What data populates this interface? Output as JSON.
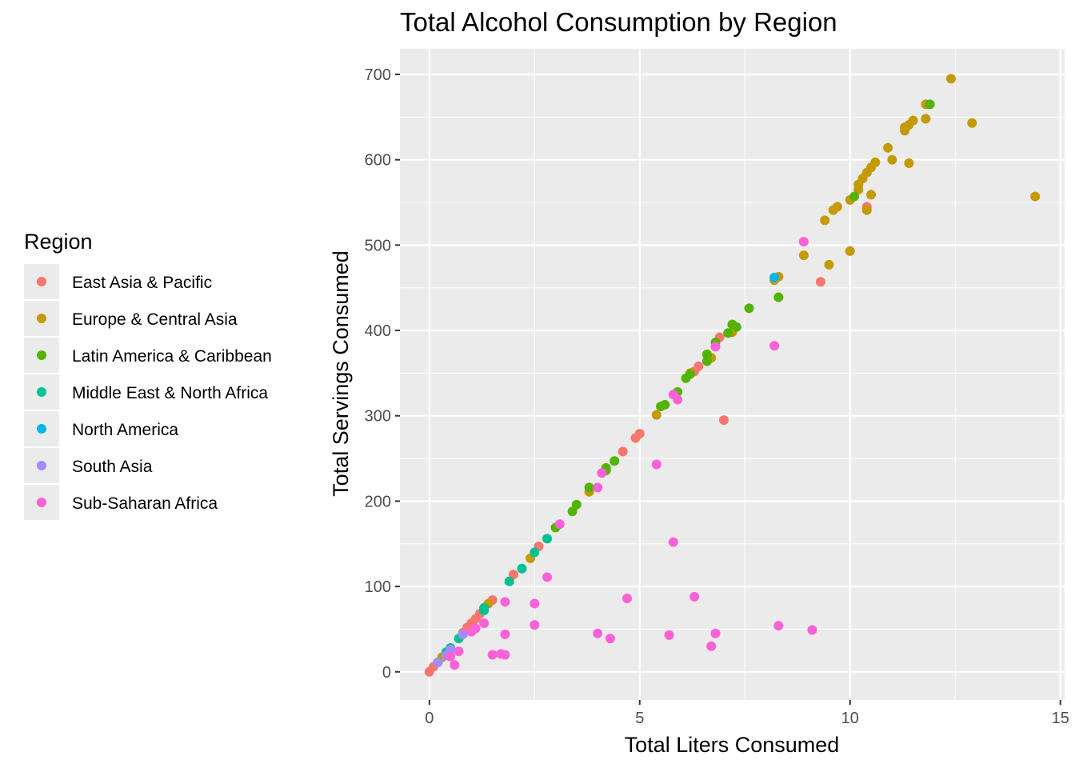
{
  "chart_data": {
    "type": "scatter",
    "title": "Total Alcohol Consumption by Region",
    "xlabel": "Total Liters Consumed",
    "ylabel": "Total Servings Consumed",
    "xlim": [
      -0.7,
      15.1
    ],
    "ylim": [
      -33,
      730
    ],
    "x_ticks": [
      0,
      5,
      10,
      15
    ],
    "y_ticks": [
      0,
      100,
      200,
      300,
      400,
      500,
      600,
      700
    ],
    "grid": true,
    "legend": {
      "title": "Region",
      "position": "left"
    },
    "series": [
      {
        "name": "East Asia & Pacific",
        "color": "#F8766D",
        "points": [
          [
            0.0,
            0
          ],
          [
            0.1,
            6
          ],
          [
            0.8,
            46
          ],
          [
            0.9,
            52
          ],
          [
            1.0,
            57
          ],
          [
            1.1,
            62
          ],
          [
            1.2,
            68
          ],
          [
            1.5,
            84
          ],
          [
            2.0,
            114
          ],
          [
            2.6,
            147
          ],
          [
            4.6,
            258
          ],
          [
            4.9,
            274
          ],
          [
            5.0,
            279
          ],
          [
            6.3,
            352
          ],
          [
            6.4,
            358
          ],
          [
            6.9,
            392
          ],
          [
            7.0,
            295
          ],
          [
            9.3,
            457
          ],
          [
            10.4,
            545
          ]
        ]
      },
      {
        "name": "Europe & Central Asia",
        "color": "#C49A00",
        "points": [
          [
            0.3,
            17
          ],
          [
            1.4,
            80
          ],
          [
            2.4,
            133
          ],
          [
            3.8,
            211
          ],
          [
            5.4,
            301
          ],
          [
            6.2,
            350
          ],
          [
            6.7,
            368
          ],
          [
            7.2,
            398
          ],
          [
            8.2,
            459
          ],
          [
            8.3,
            463
          ],
          [
            8.9,
            488
          ],
          [
            9.4,
            529
          ],
          [
            9.5,
            477
          ],
          [
            9.6,
            541
          ],
          [
            9.7,
            545
          ],
          [
            10.0,
            493
          ],
          [
            10.0,
            553
          ],
          [
            10.2,
            565
          ],
          [
            10.2,
            571
          ],
          [
            10.3,
            578
          ],
          [
            10.4,
            585
          ],
          [
            10.4,
            541
          ],
          [
            10.5,
            591
          ],
          [
            10.5,
            559
          ],
          [
            10.6,
            597
          ],
          [
            10.9,
            614
          ],
          [
            11.0,
            600
          ],
          [
            11.3,
            634
          ],
          [
            11.3,
            638
          ],
          [
            11.4,
            641
          ],
          [
            11.4,
            596
          ],
          [
            11.5,
            646
          ],
          [
            11.8,
            648
          ],
          [
            11.8,
            665
          ],
          [
            12.4,
            695
          ],
          [
            12.9,
            643
          ],
          [
            14.4,
            557
          ]
        ]
      },
      {
        "name": "Latin America & Caribbean",
        "color": "#53B400",
        "points": [
          [
            3.0,
            169
          ],
          [
            3.4,
            188
          ],
          [
            3.5,
            196
          ],
          [
            3.8,
            216
          ],
          [
            4.2,
            236
          ],
          [
            4.2,
            239
          ],
          [
            4.4,
            247
          ],
          [
            5.5,
            311
          ],
          [
            5.6,
            313
          ],
          [
            5.9,
            328
          ],
          [
            6.1,
            344
          ],
          [
            6.2,
            349
          ],
          [
            6.6,
            364
          ],
          [
            6.6,
            372
          ],
          [
            6.8,
            386
          ],
          [
            7.1,
            397
          ],
          [
            7.2,
            407
          ],
          [
            7.3,
            404
          ],
          [
            7.6,
            426
          ],
          [
            8.3,
            439
          ],
          [
            10.1,
            557
          ],
          [
            11.9,
            665
          ]
        ]
      },
      {
        "name": "Middle East & North Africa",
        "color": "#00C094",
        "points": [
          [
            0.2,
            11
          ],
          [
            0.4,
            23
          ],
          [
            0.5,
            28
          ],
          [
            0.7,
            39
          ],
          [
            1.3,
            72
          ],
          [
            1.3,
            75
          ],
          [
            1.9,
            106
          ],
          [
            2.2,
            121
          ],
          [
            2.5,
            140
          ],
          [
            2.8,
            156
          ]
        ]
      },
      {
        "name": "North America",
        "color": "#00B6EB",
        "points": [
          [
            8.2,
            462
          ]
        ]
      },
      {
        "name": "South Asia",
        "color": "#A58AFF",
        "points": [
          [
            0.2,
            11
          ],
          [
            0.4,
            19
          ],
          [
            0.5,
            26
          ],
          [
            0.8,
            44
          ]
        ]
      },
      {
        "name": "Sub-Saharan Africa",
        "color": "#FB61D7",
        "points": [
          [
            0.5,
            18
          ],
          [
            0.6,
            8
          ],
          [
            0.7,
            24
          ],
          [
            1.0,
            47
          ],
          [
            1.1,
            51
          ],
          [
            1.3,
            57
          ],
          [
            1.5,
            20
          ],
          [
            1.7,
            21
          ],
          [
            1.8,
            20
          ],
          [
            1.8,
            44
          ],
          [
            1.8,
            82
          ],
          [
            2.5,
            55
          ],
          [
            2.5,
            80
          ],
          [
            2.8,
            111
          ],
          [
            3.1,
            173
          ],
          [
            4.0,
            45
          ],
          [
            4.0,
            216
          ],
          [
            4.1,
            233
          ],
          [
            4.3,
            39
          ],
          [
            4.7,
            86
          ],
          [
            5.4,
            243
          ],
          [
            5.7,
            43
          ],
          [
            5.8,
            152
          ],
          [
            5.8,
            325
          ],
          [
            5.9,
            319
          ],
          [
            6.3,
            88
          ],
          [
            6.7,
            30
          ],
          [
            6.8,
            45
          ],
          [
            6.8,
            381
          ],
          [
            8.2,
            382
          ],
          [
            8.3,
            54
          ],
          [
            8.9,
            504
          ],
          [
            9.1,
            49
          ]
        ]
      }
    ]
  }
}
